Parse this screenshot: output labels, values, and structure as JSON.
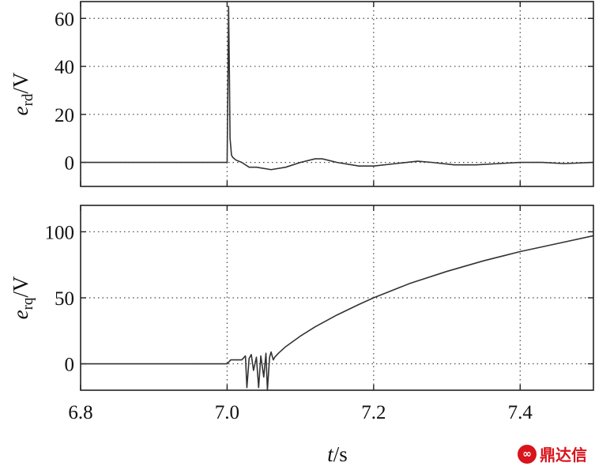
{
  "chart_data": [
    {
      "type": "line",
      "panel": "top",
      "ylabel_main": "e",
      "ylabel_sub": "rd",
      "ylabel_unit": "/V",
      "ylim": [
        -10,
        67
      ],
      "yticks": [
        0,
        20,
        40,
        60
      ],
      "xlim": [
        6.8,
        7.5
      ],
      "grid": true,
      "series": [
        {
          "x": [
            6.8,
            6.9,
            7.0,
            7.001,
            7.002,
            7.003,
            7.004,
            7.006,
            7.008,
            7.012,
            7.02,
            7.03,
            7.04,
            7.06,
            7.08,
            7.1,
            7.12,
            7.13,
            7.15,
            7.18,
            7.2,
            7.23,
            7.26,
            7.28,
            7.31,
            7.34,
            7.37,
            7.4,
            7.43,
            7.46,
            7.5
          ],
          "y": [
            0,
            0,
            0,
            30,
            65,
            40,
            10,
            3,
            2,
            1,
            0,
            -2,
            -2,
            -3,
            -2,
            0,
            1.5,
            1.5,
            0,
            -1.5,
            -1.5,
            -0.5,
            0.5,
            0,
            -1,
            -1,
            -0.5,
            0,
            0,
            -0.5,
            0
          ]
        }
      ]
    },
    {
      "type": "line",
      "panel": "bottom",
      "ylabel_main": "e",
      "ylabel_sub": "rq",
      "ylabel_unit": "/V",
      "ylim": [
        -20,
        120
      ],
      "yticks": [
        0,
        50,
        100
      ],
      "xlim": [
        6.8,
        7.5
      ],
      "xticks": [
        6.8,
        7.0,
        7.2,
        7.4
      ],
      "xtick_labels": [
        "6.8",
        "7.0",
        "7.2",
        "7.4"
      ],
      "xlabel_main": "t",
      "xlabel_unit": "/s",
      "grid": true,
      "series": [
        {
          "x": [
            6.8,
            6.9,
            7.0,
            7.005,
            7.02,
            7.025,
            7.027,
            7.03,
            7.033,
            7.036,
            7.04,
            7.043,
            7.046,
            7.05,
            7.053,
            7.055,
            7.058,
            7.06,
            7.063,
            7.065,
            7.07,
            7.08,
            7.1,
            7.12,
            7.15,
            7.18,
            7.2,
            7.25,
            7.3,
            7.35,
            7.4,
            7.45,
            7.5
          ],
          "y": [
            0,
            0,
            0,
            3,
            3,
            6,
            -18,
            4,
            7,
            -5,
            5,
            -18,
            6,
            -10,
            8,
            -20,
            5,
            9,
            3,
            5,
            8,
            13,
            21,
            28,
            37,
            45,
            50,
            61,
            70,
            78,
            85,
            91,
            97
          ]
        }
      ]
    }
  ],
  "watermark": {
    "icon": "logo-icon",
    "logo_glyph": "∞",
    "text": "鼎达信"
  }
}
